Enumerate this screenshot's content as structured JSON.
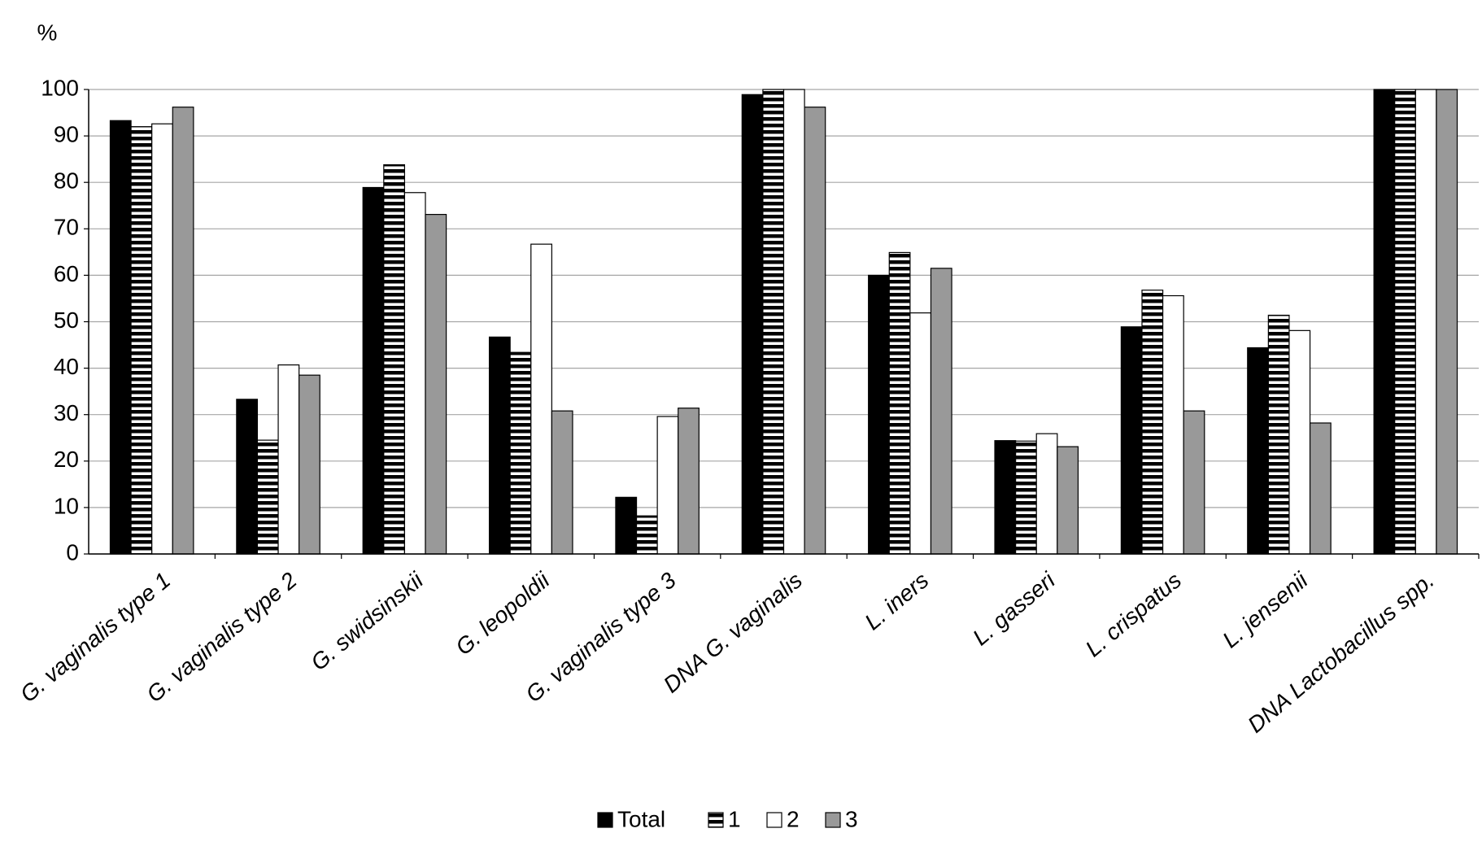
{
  "chart_data": {
    "type": "bar",
    "y_label": "%",
    "categories": [
      "G. vaginalis type 1",
      "G. vaginalis type 2",
      "G. swidsinskii",
      "G. leopoldii",
      "G. vaginalis type 3",
      "DNA G. vaginalis",
      "L. iners",
      "L. gasseri",
      "L. crispatus",
      "L. jensenii",
      "DNA Lactobacillus spp."
    ],
    "series": [
      {
        "name": "Total",
        "color": "#000000",
        "values": [
          93.3,
          33.3,
          78.9,
          46.7,
          12.2,
          98.9,
          60.0,
          24.4,
          48.9,
          44.4,
          100
        ]
      },
      {
        "name": "1",
        "color": "#000000",
        "hatch": "horizontal",
        "values": [
          92.0,
          24.5,
          83.8,
          43.4,
          8.2,
          100,
          64.9,
          24.3,
          56.8,
          51.4,
          100
        ]
      },
      {
        "name": "2",
        "color": "#ffffff",
        "values": [
          92.6,
          40.7,
          77.8,
          66.7,
          29.6,
          100,
          51.9,
          25.9,
          55.6,
          48.1,
          100
        ]
      },
      {
        "name": "3",
        "color": "#999999",
        "values": [
          96.2,
          38.5,
          73.1,
          30.8,
          31.4,
          96.2,
          61.5,
          23.1,
          30.8,
          28.2,
          100
        ]
      }
    ],
    "ylim": [
      0,
      100
    ],
    "yticks": [
      0,
      10,
      20,
      30,
      40,
      50,
      60,
      70,
      80,
      90,
      100
    ],
    "grid": true,
    "legend": "bottom"
  }
}
